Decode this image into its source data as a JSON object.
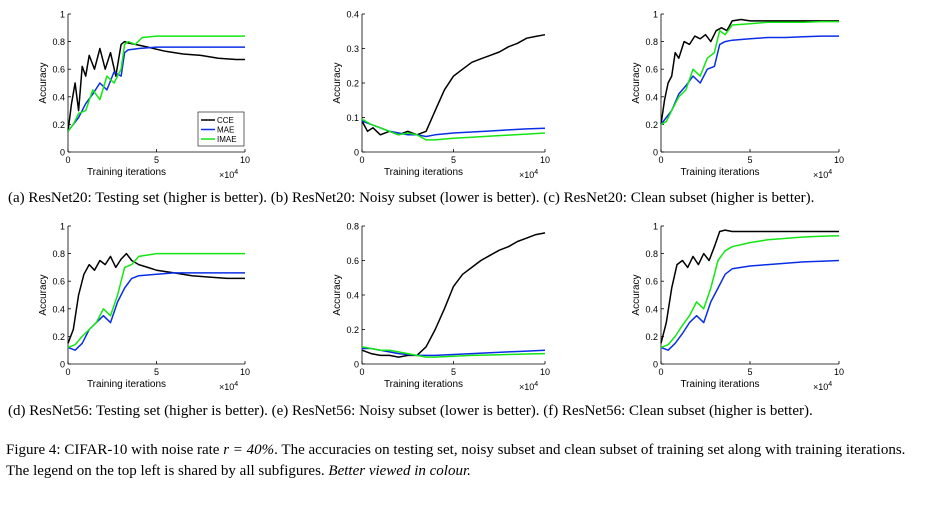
{
  "legend": {
    "entries": [
      {
        "label": "CCE",
        "color": "#000000"
      },
      {
        "label": "MAE",
        "color": "#0a2ee6"
      },
      {
        "label": "IMAE",
        "color": "#14e614"
      }
    ],
    "placement": "lower-right of panel (a)"
  },
  "common": {
    "xlabel": "Training iterations",
    "ylabel": "Accuracy",
    "x_multiplier": "×10",
    "x_multiplier_exp": "4",
    "xticks": [
      "0",
      "5",
      "10"
    ]
  },
  "captions": {
    "row1": "(a) ResNet20: Testing set (higher is better). (b) ResNet20: Noisy subset (lower is better). (c) ResNet20: Clean subset (higher is better).",
    "row2": "(d) ResNet56: Testing set (higher is better). (e) ResNet56: Noisy subset (lower is better). (f) ResNet56: Clean subset (higher is better).",
    "figure_prefix": "Figure 4: CIFAR-10 with noise rate ",
    "figure_math": "r = 40%",
    "figure_body": ". The accuracies on testing set, noisy subset and clean subset of training set along with training iterations. The legend on the top left is shared by all subfigures. ",
    "figure_italic": "Better viewed in colour."
  },
  "chart_data": [
    {
      "id": "a",
      "type": "line",
      "title": "ResNet20: Testing set",
      "xlabel": "Training iterations",
      "ylabel": "Accuracy",
      "xlim": [
        0,
        10
      ],
      "ylim": [
        0,
        1
      ],
      "yticks": [
        0,
        0.2,
        0.4,
        0.6,
        0.8,
        1
      ],
      "ytick_labels": [
        "0",
        "0.2",
        "0.4",
        "0.6",
        "0.8",
        "1"
      ],
      "series": [
        {
          "name": "CCE",
          "x": [
            0,
            0.2,
            0.4,
            0.6,
            0.8,
            1.0,
            1.2,
            1.5,
            1.8,
            2.1,
            2.4,
            2.7,
            3.0,
            3.2,
            3.4,
            3.8,
            4.5,
            5.5,
            6.5,
            7.5,
            8.5,
            9.5,
            10
          ],
          "y": [
            0.15,
            0.35,
            0.5,
            0.3,
            0.62,
            0.55,
            0.7,
            0.6,
            0.75,
            0.6,
            0.72,
            0.55,
            0.78,
            0.8,
            0.79,
            0.78,
            0.76,
            0.73,
            0.71,
            0.7,
            0.68,
            0.67,
            0.67
          ]
        },
        {
          "name": "MAE",
          "x": [
            0,
            0.3,
            0.6,
            1.0,
            1.4,
            1.8,
            2.2,
            2.6,
            3.0,
            3.2,
            3.4,
            4.0,
            5.0,
            6.0,
            7.0,
            8.0,
            9.0,
            10
          ],
          "y": [
            0.15,
            0.2,
            0.25,
            0.35,
            0.42,
            0.5,
            0.45,
            0.58,
            0.55,
            0.72,
            0.74,
            0.75,
            0.76,
            0.76,
            0.76,
            0.76,
            0.76,
            0.76
          ]
        },
        {
          "name": "IMAE",
          "x": [
            0,
            0.3,
            0.6,
            1.0,
            1.4,
            1.8,
            2.2,
            2.6,
            3.0,
            3.2,
            3.4,
            3.8,
            4.2,
            5.0,
            6.0,
            7.0,
            8.0,
            9.0,
            10
          ],
          "y": [
            0.15,
            0.2,
            0.28,
            0.3,
            0.45,
            0.38,
            0.55,
            0.5,
            0.6,
            0.78,
            0.8,
            0.78,
            0.83,
            0.84,
            0.84,
            0.84,
            0.84,
            0.84,
            0.84
          ]
        }
      ]
    },
    {
      "id": "b",
      "type": "line",
      "title": "ResNet20: Noisy subset",
      "xlabel": "Training iterations",
      "ylabel": "Accuracy",
      "xlim": [
        0,
        10
      ],
      "ylim": [
        0,
        0.4
      ],
      "yticks": [
        0,
        0.1,
        0.2,
        0.3,
        0.4
      ],
      "ytick_labels": [
        "0",
        "0.1",
        "0.2",
        "0.3",
        "0.4"
      ],
      "series": [
        {
          "name": "CCE",
          "x": [
            0,
            0.3,
            0.6,
            1.0,
            1.5,
            2.0,
            2.5,
            3.0,
            3.5,
            4.0,
            4.5,
            5.0,
            5.5,
            6.0,
            6.5,
            7.0,
            7.5,
            8.0,
            8.5,
            9.0,
            9.5,
            10
          ],
          "y": [
            0.09,
            0.06,
            0.07,
            0.05,
            0.06,
            0.05,
            0.06,
            0.05,
            0.06,
            0.12,
            0.18,
            0.22,
            0.24,
            0.26,
            0.27,
            0.28,
            0.29,
            0.305,
            0.315,
            0.33,
            0.335,
            0.34
          ]
        },
        {
          "name": "MAE",
          "x": [
            0,
            0.5,
            1.0,
            1.5,
            2.0,
            2.5,
            3.0,
            3.5,
            4.0,
            5.0,
            6.0,
            7.0,
            8.0,
            9.0,
            10
          ],
          "y": [
            0.09,
            0.08,
            0.07,
            0.06,
            0.055,
            0.05,
            0.05,
            0.045,
            0.05,
            0.055,
            0.058,
            0.061,
            0.064,
            0.067,
            0.069
          ]
        },
        {
          "name": "IMAE",
          "x": [
            0,
            0.5,
            1.0,
            1.5,
            2.0,
            2.5,
            3.0,
            3.5,
            4.0,
            5.0,
            6.0,
            7.0,
            8.0,
            9.0,
            10
          ],
          "y": [
            0.095,
            0.08,
            0.07,
            0.06,
            0.05,
            0.055,
            0.05,
            0.035,
            0.035,
            0.04,
            0.043,
            0.046,
            0.049,
            0.052,
            0.055
          ]
        }
      ]
    },
    {
      "id": "c",
      "type": "line",
      "title": "ResNet20: Clean subset",
      "xlabel": "Training iterations",
      "ylabel": "Accuracy",
      "xlim": [
        0,
        10
      ],
      "ylim": [
        0,
        1
      ],
      "yticks": [
        0,
        0.2,
        0.4,
        0.6,
        0.8,
        1
      ],
      "ytick_labels": [
        "0",
        "0.2",
        "0.4",
        "0.6",
        "0.8",
        "1"
      ],
      "series": [
        {
          "name": "CCE",
          "x": [
            0,
            0.2,
            0.4,
            0.6,
            0.8,
            1.0,
            1.3,
            1.6,
            1.9,
            2.2,
            2.5,
            2.8,
            3.1,
            3.4,
            3.7,
            4.0,
            4.5,
            5.0,
            6.0,
            7.0,
            8.0,
            9.0,
            10
          ],
          "y": [
            0.2,
            0.38,
            0.5,
            0.55,
            0.72,
            0.68,
            0.8,
            0.78,
            0.84,
            0.82,
            0.85,
            0.8,
            0.88,
            0.9,
            0.88,
            0.95,
            0.96,
            0.95,
            0.95,
            0.95,
            0.95,
            0.95,
            0.95
          ]
        },
        {
          "name": "MAE",
          "x": [
            0,
            0.3,
            0.6,
            1.0,
            1.4,
            1.8,
            2.2,
            2.6,
            3.0,
            3.3,
            3.6,
            4.0,
            5.0,
            6.0,
            7.0,
            8.0,
            9.0,
            10
          ],
          "y": [
            0.2,
            0.25,
            0.3,
            0.42,
            0.48,
            0.55,
            0.5,
            0.6,
            0.62,
            0.78,
            0.8,
            0.81,
            0.82,
            0.83,
            0.83,
            0.835,
            0.84,
            0.84
          ]
        },
        {
          "name": "IMAE",
          "x": [
            0,
            0.3,
            0.6,
            1.0,
            1.4,
            1.8,
            2.2,
            2.6,
            3.0,
            3.3,
            3.6,
            4.0,
            5.0,
            6.0,
            7.0,
            8.0,
            9.0,
            10
          ],
          "y": [
            0.2,
            0.22,
            0.3,
            0.4,
            0.45,
            0.6,
            0.55,
            0.68,
            0.72,
            0.88,
            0.85,
            0.92,
            0.93,
            0.94,
            0.94,
            0.94,
            0.945,
            0.945
          ]
        }
      ]
    },
    {
      "id": "d",
      "type": "line",
      "title": "ResNet56: Testing set",
      "xlabel": "Training iterations",
      "ylabel": "Accuracy",
      "xlim": [
        0,
        10
      ],
      "ylim": [
        0,
        1
      ],
      "yticks": [
        0,
        0.2,
        0.4,
        0.6,
        0.8,
        1
      ],
      "ytick_labels": [
        "0",
        "0.2",
        "0.4",
        "0.6",
        "0.8",
        "1"
      ],
      "series": [
        {
          "name": "CCE",
          "x": [
            0,
            0.3,
            0.6,
            0.9,
            1.2,
            1.5,
            1.8,
            2.1,
            2.4,
            2.7,
            3.0,
            3.3,
            3.6,
            4.0,
            4.5,
            5.0,
            6.0,
            7.0,
            8.0,
            9.0,
            10
          ],
          "y": [
            0.15,
            0.25,
            0.5,
            0.65,
            0.72,
            0.68,
            0.75,
            0.72,
            0.78,
            0.7,
            0.76,
            0.8,
            0.75,
            0.72,
            0.7,
            0.68,
            0.66,
            0.64,
            0.63,
            0.62,
            0.62
          ]
        },
        {
          "name": "MAE",
          "x": [
            0,
            0.4,
            0.8,
            1.2,
            1.6,
            2.0,
            2.4,
            2.8,
            3.2,
            3.6,
            4.0,
            5.0,
            6.0,
            7.0,
            8.0,
            9.0,
            10
          ],
          "y": [
            0.12,
            0.1,
            0.15,
            0.25,
            0.3,
            0.35,
            0.3,
            0.45,
            0.55,
            0.62,
            0.64,
            0.65,
            0.66,
            0.66,
            0.66,
            0.66,
            0.66
          ]
        },
        {
          "name": "IMAE",
          "x": [
            0,
            0.4,
            0.8,
            1.2,
            1.6,
            2.0,
            2.4,
            2.8,
            3.2,
            3.6,
            4.0,
            5.0,
            6.0,
            7.0,
            8.0,
            9.0,
            10
          ],
          "y": [
            0.12,
            0.14,
            0.2,
            0.25,
            0.3,
            0.4,
            0.35,
            0.5,
            0.7,
            0.72,
            0.78,
            0.8,
            0.8,
            0.8,
            0.8,
            0.8,
            0.8
          ]
        }
      ]
    },
    {
      "id": "e",
      "type": "line",
      "title": "ResNet56: Noisy subset",
      "xlabel": "Training iterations",
      "ylabel": "Accuracy",
      "xlim": [
        0,
        10
      ],
      "ylim": [
        0,
        0.8
      ],
      "yticks": [
        0,
        0.2,
        0.4,
        0.6,
        0.8
      ],
      "ytick_labels": [
        "0",
        "0.2",
        "0.4",
        "0.6",
        "0.8"
      ],
      "series": [
        {
          "name": "CCE",
          "x": [
            0,
            0.5,
            1.0,
            1.5,
            2.0,
            2.5,
            3.0,
            3.5,
            4.0,
            4.5,
            5.0,
            5.5,
            6.0,
            6.5,
            7.0,
            7.5,
            8.0,
            8.5,
            9.0,
            9.5,
            10
          ],
          "y": [
            0.08,
            0.06,
            0.05,
            0.05,
            0.04,
            0.05,
            0.05,
            0.1,
            0.2,
            0.32,
            0.45,
            0.52,
            0.56,
            0.6,
            0.63,
            0.66,
            0.68,
            0.71,
            0.73,
            0.75,
            0.76
          ]
        },
        {
          "name": "MAE",
          "x": [
            0,
            0.5,
            1.0,
            1.5,
            2.0,
            2.5,
            3.0,
            3.5,
            4.0,
            5.0,
            6.0,
            7.0,
            8.0,
            9.0,
            10
          ],
          "y": [
            0.09,
            0.09,
            0.08,
            0.07,
            0.06,
            0.055,
            0.05,
            0.05,
            0.05,
            0.055,
            0.06,
            0.065,
            0.07,
            0.075,
            0.08
          ]
        },
        {
          "name": "IMAE",
          "x": [
            0,
            0.5,
            1.0,
            1.5,
            2.0,
            2.5,
            3.0,
            3.5,
            4.0,
            5.0,
            6.0,
            7.0,
            8.0,
            9.0,
            10
          ],
          "y": [
            0.1,
            0.09,
            0.08,
            0.08,
            0.07,
            0.06,
            0.05,
            0.04,
            0.04,
            0.045,
            0.05,
            0.052,
            0.055,
            0.058,
            0.06
          ]
        }
      ]
    },
    {
      "id": "f",
      "type": "line",
      "title": "ResNet56: Clean subset",
      "xlabel": "Training iterations",
      "ylabel": "Accuracy",
      "xlim": [
        0,
        10
      ],
      "ylim": [
        0,
        1
      ],
      "yticks": [
        0,
        0.2,
        0.4,
        0.6,
        0.8,
        1
      ],
      "ytick_labels": [
        "0",
        "0.2",
        "0.4",
        "0.6",
        "0.8",
        "1"
      ],
      "series": [
        {
          "name": "CCE",
          "x": [
            0,
            0.3,
            0.6,
            0.9,
            1.2,
            1.5,
            1.8,
            2.1,
            2.4,
            2.7,
            3.0,
            3.3,
            3.6,
            4.0,
            5.0,
            6.0,
            7.0,
            8.0,
            9.0,
            10
          ],
          "y": [
            0.15,
            0.3,
            0.55,
            0.72,
            0.75,
            0.7,
            0.78,
            0.72,
            0.8,
            0.75,
            0.85,
            0.96,
            0.97,
            0.96,
            0.96,
            0.96,
            0.96,
            0.96,
            0.96,
            0.96
          ]
        },
        {
          "name": "MAE",
          "x": [
            0,
            0.4,
            0.8,
            1.2,
            1.6,
            2.0,
            2.4,
            2.8,
            3.2,
            3.6,
            4.0,
            5.0,
            6.0,
            7.0,
            8.0,
            9.0,
            10
          ],
          "y": [
            0.12,
            0.1,
            0.15,
            0.22,
            0.3,
            0.35,
            0.3,
            0.45,
            0.55,
            0.65,
            0.69,
            0.71,
            0.72,
            0.73,
            0.74,
            0.745,
            0.75
          ]
        },
        {
          "name": "IMAE",
          "x": [
            0,
            0.4,
            0.8,
            1.2,
            1.6,
            2.0,
            2.4,
            2.8,
            3.2,
            3.6,
            4.0,
            5.0,
            6.0,
            7.0,
            8.0,
            9.0,
            10
          ],
          "y": [
            0.12,
            0.14,
            0.2,
            0.28,
            0.35,
            0.45,
            0.4,
            0.55,
            0.75,
            0.82,
            0.85,
            0.88,
            0.9,
            0.91,
            0.92,
            0.925,
            0.93
          ]
        }
      ]
    }
  ]
}
